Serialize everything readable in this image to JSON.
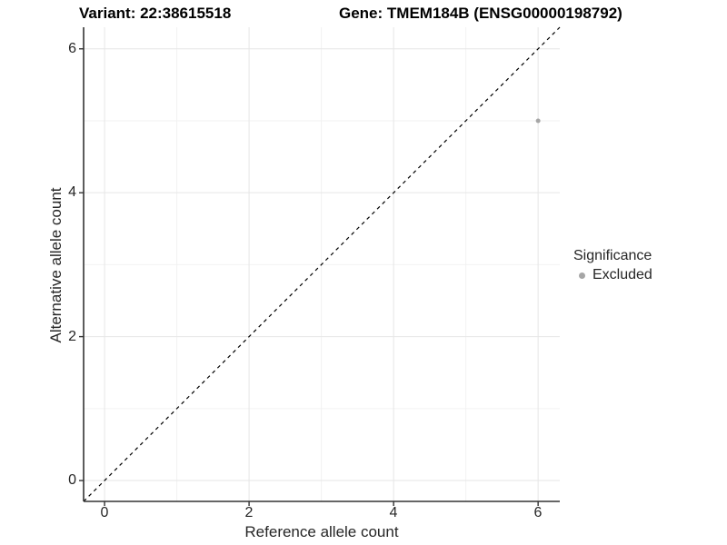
{
  "chart_data": {
    "type": "scatter",
    "title_variant": "Variant: 22:38615518",
    "title_gene": "Gene: TMEM184B (ENSG00000198792)",
    "xlabel": "Reference allele count",
    "ylabel": "Alternative allele count",
    "xlim": [
      -0.29,
      6.3
    ],
    "ylim": [
      -0.29,
      6.3
    ],
    "x_ticks": [
      0,
      2,
      4,
      6
    ],
    "y_ticks": [
      0,
      2,
      4,
      6
    ],
    "x_tick_labels": [
      "0",
      "2",
      "4",
      "6"
    ],
    "y_tick_labels": [
      "0",
      "2",
      "4",
      "6"
    ],
    "minor_ticks": [
      1,
      3,
      5
    ],
    "grid": true,
    "identity_line": {
      "style": "dashed",
      "color": "#000000",
      "from": [
        -0.29,
        -0.29
      ],
      "to": [
        6.3,
        6.3
      ]
    },
    "series": [
      {
        "name": "Excluded",
        "color": "#a6a6a6",
        "points": [
          {
            "x": 6,
            "y": 5
          }
        ]
      }
    ],
    "legend": {
      "title": "Significance",
      "position": "right",
      "items": [
        {
          "label": "Excluded",
          "color": "#a6a6a6"
        }
      ]
    },
    "colors": {
      "grid_major": "#e6e6e6",
      "grid_minor": "#f2f2f2",
      "axis": "#333333",
      "text": "#262626",
      "point": "#a6a6a6"
    }
  }
}
